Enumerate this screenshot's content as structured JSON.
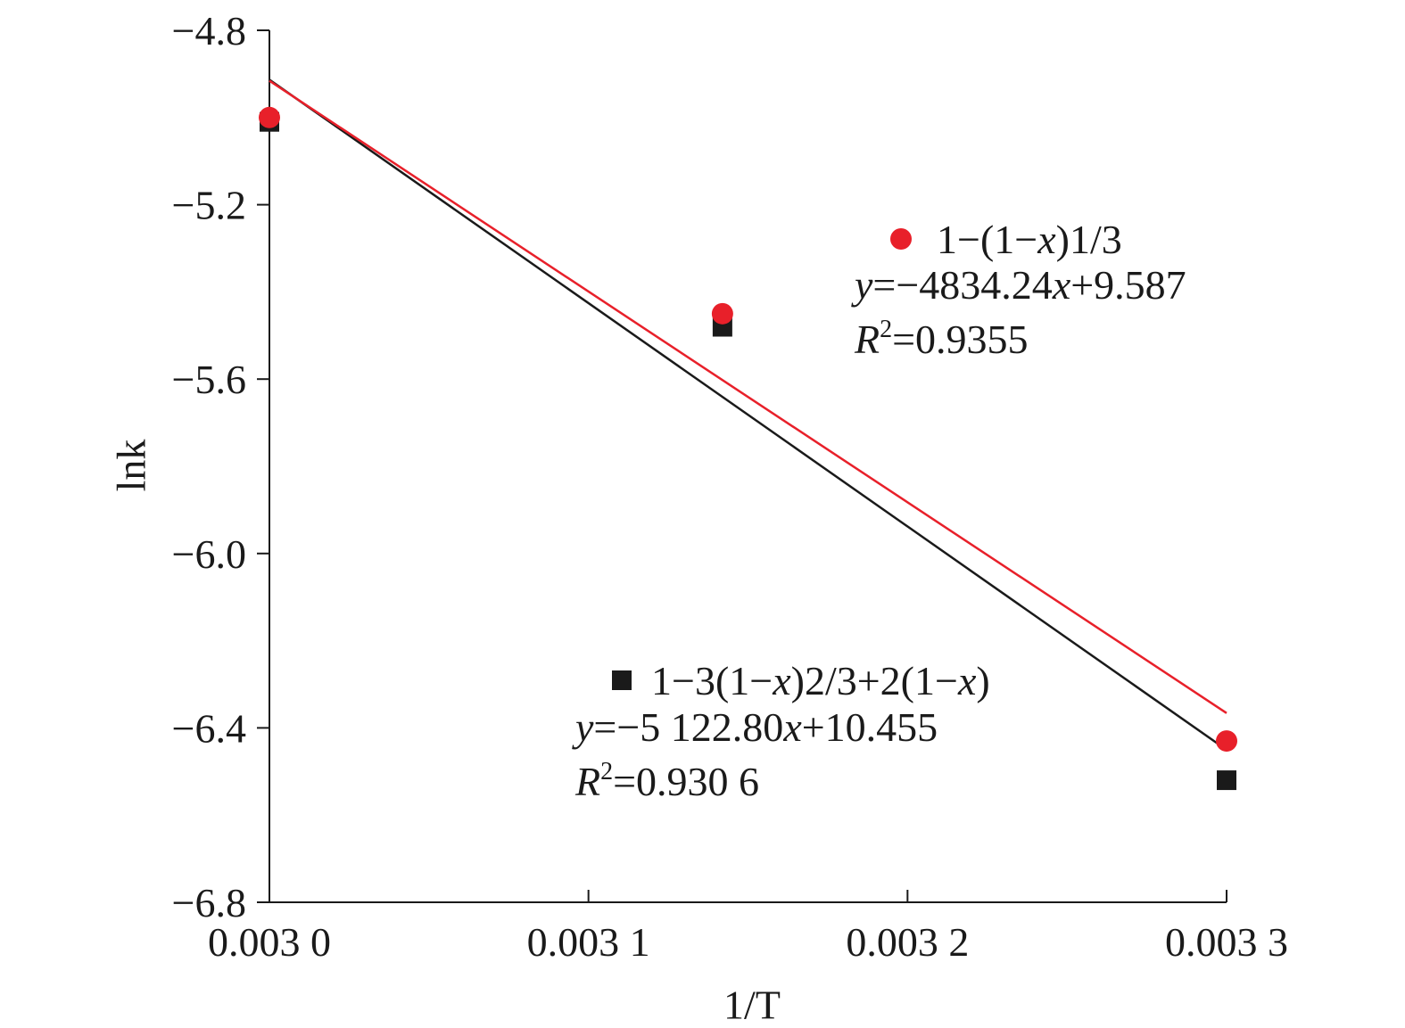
{
  "chart_data": {
    "type": "scatter",
    "xlabel": "1/T",
    "ylabel": "lnk",
    "xlim": [
      0.003,
      0.0033
    ],
    "ylim": [
      -6.8,
      -4.8
    ],
    "x_ticks": [
      0.003,
      0.0031,
      0.0032,
      0.0033
    ],
    "x_tick_labels": [
      "0.003 0",
      "0.003 1",
      "0.003 2",
      "0.003 3"
    ],
    "y_ticks": [
      -4.8,
      -5.2,
      -5.6,
      -6.0,
      -6.4,
      -6.8
    ],
    "y_tick_labels": [
      "−4.8",
      "−5.2",
      "−5.6",
      "−6.0",
      "−6.4",
      "−6.8"
    ],
    "grid": false,
    "series": [
      {
        "name": "1−(1−x)1/3",
        "marker": "circle",
        "color": "#e8202a",
        "x": [
          0.003,
          0.003142,
          0.0033
        ],
        "y": [
          -5.0,
          -5.45,
          -6.43
        ],
        "fit": {
          "slope": -4834.24,
          "intercept": 9.587
        },
        "equation": {
          "lhs": "y",
          "rhs": "=−4834.24",
          "var": "x",
          "tail": "+9.587"
        },
        "r2": {
          "label": "R",
          "sup": "2",
          "value": "=0.9355"
        }
      },
      {
        "name": "1−3(1−x)2/3+2(1−x)",
        "marker": "square",
        "color": "#1a1a1a",
        "x": [
          0.003,
          0.003142,
          0.0033
        ],
        "y": [
          -5.01,
          -5.48,
          -6.52
        ],
        "fit": {
          "slope": -5122.8,
          "intercept": 10.455
        },
        "equation": {
          "lhs": "y",
          "rhs": "=−5 122.80",
          "var": "x",
          "tail": "+10.455"
        },
        "r2": {
          "label": "R",
          "sup": "2",
          "value": "=0.930 6"
        }
      }
    ],
    "legend_parts": {
      "red": [
        "1−(1−",
        "x",
        ")1/3"
      ],
      "black": [
        "1−3(1−",
        "x",
        ")2/3+2(1−",
        "x",
        ")"
      ]
    }
  }
}
